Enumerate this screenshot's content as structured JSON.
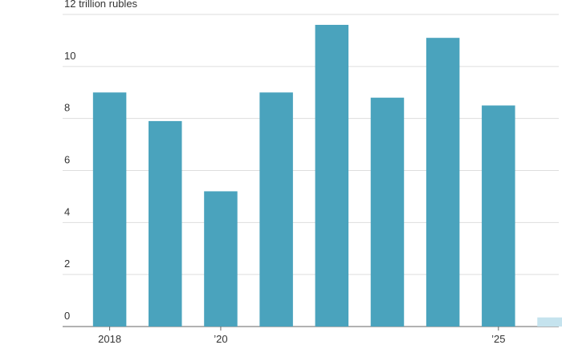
{
  "chart_data": {
    "type": "bar",
    "categories": [
      "2018",
      null,
      "’20",
      null,
      null,
      null,
      null,
      "’25",
      null
    ],
    "values": [
      9.0,
      7.9,
      5.2,
      9.0,
      11.6,
      8.8,
      11.1,
      8.5,
      0.35
    ],
    "colors": [
      "#4aa3bd",
      "#4aa3bd",
      "#4aa3bd",
      "#4aa3bd",
      "#4aa3bd",
      "#4aa3bd",
      "#4aa3bd",
      "#4aa3bd",
      "#c5e3ee"
    ],
    "ylim": [
      0,
      12
    ],
    "yticks": [
      0,
      2,
      4,
      6,
      8,
      10,
      {
        "value": 12,
        "label": "12 trillion rubles"
      }
    ],
    "grid": true
  }
}
